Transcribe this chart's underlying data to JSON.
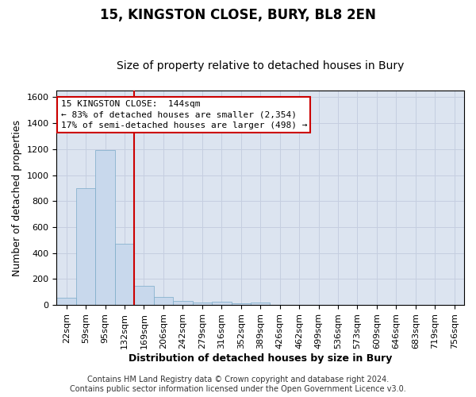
{
  "title": "15, KINGSTON CLOSE, BURY, BL8 2EN",
  "subtitle": "Size of property relative to detached houses in Bury",
  "xlabel": "Distribution of detached houses by size in Bury",
  "ylabel": "Number of detached properties",
  "footer_line1": "Contains HM Land Registry data © Crown copyright and database right 2024.",
  "footer_line2": "Contains public sector information licensed under the Open Government Licence v3.0.",
  "annotation_line1": "15 KINGSTON CLOSE:  144sqm",
  "annotation_line2": "← 83% of detached houses are smaller (2,354)",
  "annotation_line3": "17% of semi-detached houses are larger (498) →",
  "bar_labels": [
    "22sqm",
    "59sqm",
    "95sqm",
    "132sqm",
    "169sqm",
    "206sqm",
    "242sqm",
    "279sqm",
    "316sqm",
    "352sqm",
    "389sqm",
    "426sqm",
    "462sqm",
    "499sqm",
    "536sqm",
    "573sqm",
    "609sqm",
    "646sqm",
    "683sqm",
    "719sqm",
    "756sqm"
  ],
  "bar_values": [
    55,
    900,
    1195,
    470,
    150,
    60,
    30,
    20,
    25,
    15,
    20,
    0,
    0,
    0,
    0,
    0,
    0,
    0,
    0,
    0,
    0
  ],
  "bar_color": "#c8d8ec",
  "bar_edge_color": "#7aaac8",
  "grid_color": "#c5cee0",
  "background_color": "#dce4f0",
  "vline_x_index": 3,
  "vline_color": "#cc0000",
  "ylim": [
    0,
    1650
  ],
  "yticks": [
    0,
    200,
    400,
    600,
    800,
    1000,
    1200,
    1400,
    1600
  ],
  "annotation_box_color": "#cc0000",
  "title_fontsize": 12,
  "subtitle_fontsize": 10,
  "axis_label_fontsize": 9,
  "tick_fontsize": 8,
  "annotation_fontsize": 8,
  "footer_fontsize": 7
}
